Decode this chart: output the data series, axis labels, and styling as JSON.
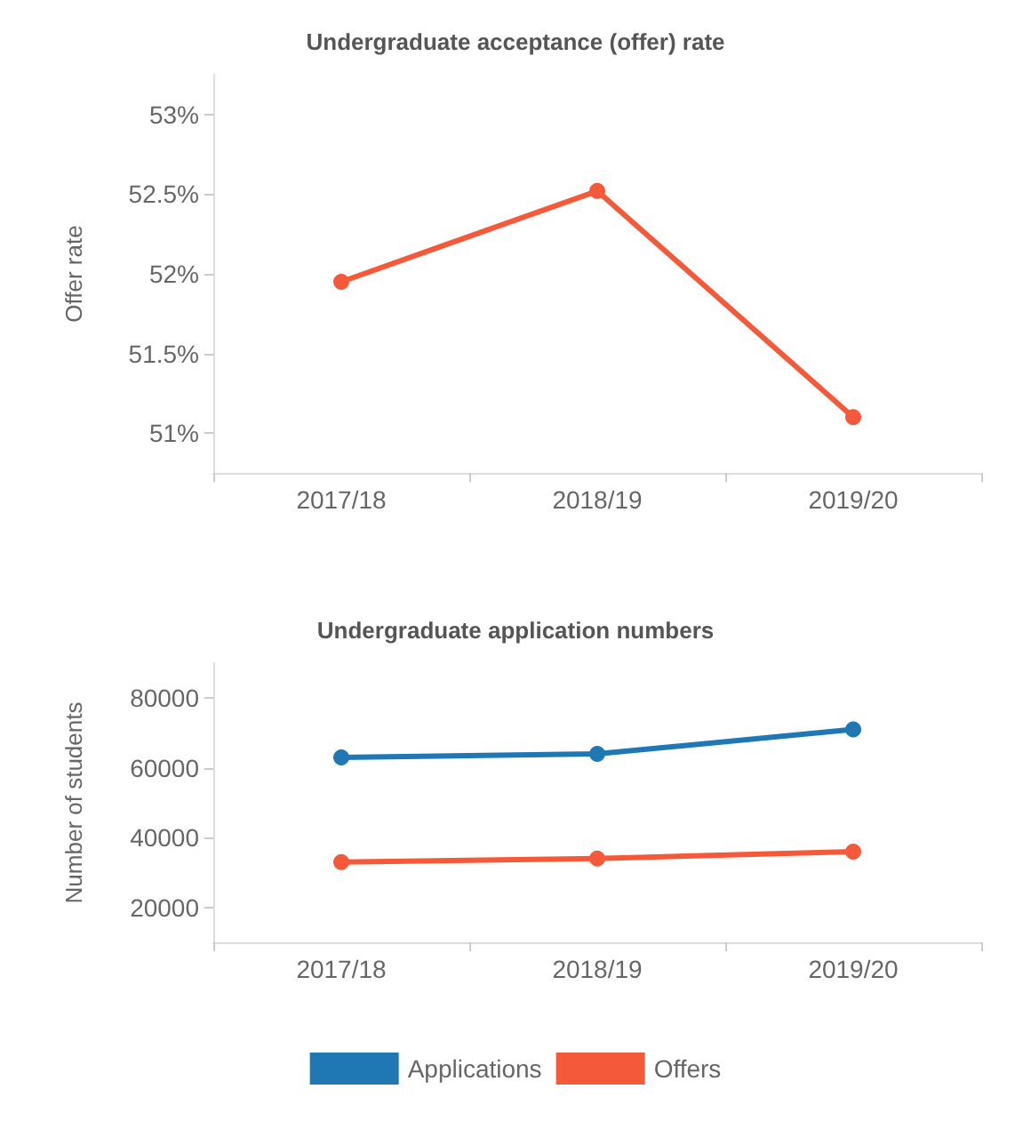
{
  "chart_data": [
    {
      "type": "line",
      "title": "Undergraduate acceptance (offer) rate",
      "ylabel": "Offer rate",
      "categories": [
        "2017/18",
        "2018/19",
        "2019/20"
      ],
      "series": [
        {
          "color": "#f4593a",
          "values": [
            51.95,
            52.52,
            51.1
          ]
        }
      ],
      "ylim": [
        50.75,
        53.25
      ],
      "yticks": [
        {
          "value": 51,
          "label": "51%"
        },
        {
          "value": 51.5,
          "label": "51.5%"
        },
        {
          "value": 52,
          "label": "52%"
        },
        {
          "value": 52.5,
          "label": "52.5%"
        },
        {
          "value": 53,
          "label": "53%"
        }
      ],
      "grid": false,
      "marker": "circle",
      "legend": false
    },
    {
      "type": "line",
      "title": "Undergraduate application numbers",
      "ylabel": "Number of students",
      "categories": [
        "2017/18",
        "2018/19",
        "2019/20"
      ],
      "series": [
        {
          "name": "Applications",
          "color": "#1f77b4",
          "values": [
            63000,
            64000,
            71000
          ]
        },
        {
          "name": "Offers",
          "color": "#f4593a",
          "values": [
            33000,
            34000,
            36000
          ]
        }
      ],
      "ylim": [
        10000,
        90000
      ],
      "yticks": [
        20000,
        40000,
        60000,
        80000
      ],
      "grid": false,
      "marker": "circle",
      "legend": "bottom"
    }
  ]
}
